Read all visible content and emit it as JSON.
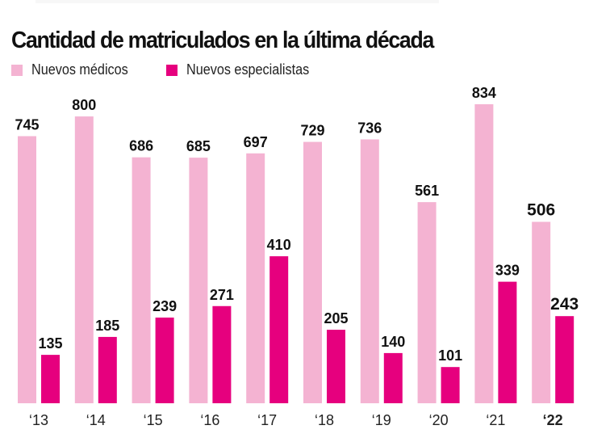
{
  "chart_data": {
    "type": "bar",
    "title": "Cantidad de matriculados en la última década",
    "xlabel": "",
    "ylabel": "",
    "categories": [
      "'13",
      "'14",
      "'15",
      "'16",
      "'17",
      "'18",
      "'19",
      "'20",
      "'21",
      "'22"
    ],
    "series": [
      {
        "name": "Nuevos médicos",
        "color": "#f4b3d2",
        "values": [
          745,
          800,
          686,
          685,
          697,
          729,
          736,
          561,
          834,
          506
        ]
      },
      {
        "name": "Nuevos especialistas",
        "color": "#e6007e",
        "values": [
          135,
          185,
          239,
          271,
          410,
          205,
          140,
          101,
          339,
          243
        ]
      }
    ],
    "highlight_category": "'22",
    "ylim": [
      0,
      834
    ],
    "grid": false,
    "legend": "top-left",
    "data_labels": true
  }
}
